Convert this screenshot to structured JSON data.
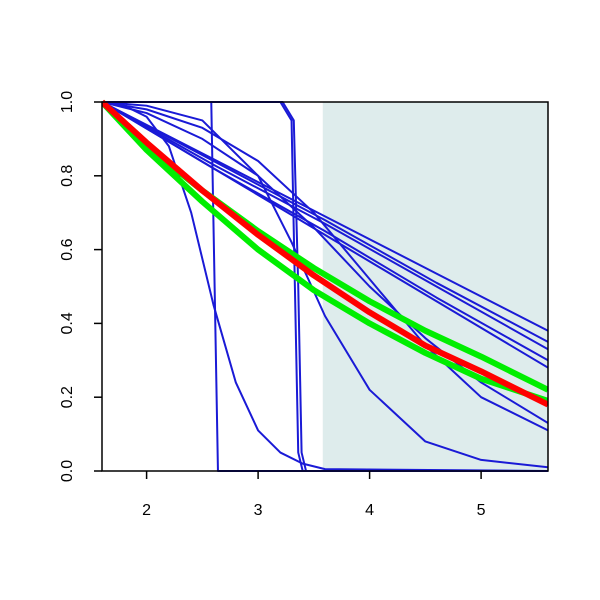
{
  "chart_data": {
    "type": "line",
    "xlim": [
      1.6,
      5.6
    ],
    "ylim": [
      0,
      1
    ],
    "xticks": [
      2,
      3,
      4,
      5
    ],
    "yticks": [
      {
        "value": 0,
        "label": "0.0"
      },
      {
        "value": 0.2,
        "label": "0.2"
      },
      {
        "value": 0.4,
        "label": "0.4"
      },
      {
        "value": 0.6,
        "label": "0.6"
      },
      {
        "value": 0.8,
        "label": "0.8"
      },
      {
        "value": 1,
        "label": "1.0"
      }
    ],
    "shaded_region": {
      "x": [
        3.58,
        5.6
      ],
      "color": "#deecec"
    },
    "series": [
      {
        "color": "#1a1ad6",
        "width": 2,
        "x": [
          1.6,
          2.6,
          3.6,
          4.6,
          5.6
        ],
        "values": [
          1,
          0.845,
          0.69,
          0.535,
          0.38
        ]
      },
      {
        "color": "#1a1ad6",
        "width": 2,
        "x": [
          1.6,
          2.6,
          3.6,
          4.6,
          5.6
        ],
        "values": [
          1,
          0.84,
          0.68,
          0.51,
          0.35
        ]
      },
      {
        "color": "#1a1ad6",
        "width": 2,
        "x": [
          1.6,
          2.6,
          3.6,
          4.6,
          5.6
        ],
        "values": [
          1,
          0.83,
          0.67,
          0.5,
          0.33
        ]
      },
      {
        "color": "#1a1ad6",
        "width": 2,
        "x": [
          1.6,
          2.6,
          3.6,
          4.6,
          5.6
        ],
        "values": [
          1,
          0.82,
          0.65,
          0.47,
          0.3
        ]
      },
      {
        "color": "#1a1ad6",
        "width": 2,
        "x": [
          1.6,
          2.6,
          3.6,
          4.6,
          5.6
        ],
        "values": [
          1,
          0.82,
          0.64,
          0.46,
          0.28
        ]
      },
      {
        "color": "#1a1ad6",
        "width": 2,
        "x": [
          1.6,
          2.58,
          2.61,
          2.64,
          5.6
        ],
        "values": [
          1,
          1,
          0.5,
          0,
          0
        ]
      },
      {
        "color": "#1a1ad6",
        "width": 2,
        "x": [
          1.6,
          3.2,
          3.3,
          3.33,
          3.36,
          3.4,
          5.6
        ],
        "values": [
          1,
          1,
          0.95,
          0.5,
          0.05,
          0,
          0
        ]
      },
      {
        "color": "#1a1ad6",
        "width": 2,
        "x": [
          1.6,
          3.22,
          3.32,
          3.36,
          3.39,
          3.43,
          5.6
        ],
        "values": [
          1,
          1,
          0.95,
          0.5,
          0.05,
          0,
          0
        ]
      },
      {
        "color": "#1a1ad6",
        "width": 2,
        "x": [
          1.6,
          1.8,
          2.0,
          2.2,
          2.4,
          2.6,
          2.8,
          3.0,
          3.2,
          3.4,
          3.6,
          5.6
        ],
        "values": [
          1,
          0.99,
          0.96,
          0.88,
          0.7,
          0.45,
          0.24,
          0.11,
          0.05,
          0.02,
          0.005,
          0
        ]
      },
      {
        "color": "#1a1ad6",
        "width": 2,
        "x": [
          1.6,
          2.0,
          2.5,
          3.0,
          3.3,
          3.6,
          4.0,
          4.5,
          5.0,
          5.6
        ],
        "values": [
          1,
          0.99,
          0.95,
          0.8,
          0.62,
          0.42,
          0.22,
          0.08,
          0.03,
          0.01
        ]
      },
      {
        "color": "#1a1ad6",
        "width": 2,
        "x": [
          1.6,
          2.0,
          2.5,
          3.0,
          3.5,
          4.0,
          4.5,
          5.0,
          5.6
        ],
        "values": [
          1,
          0.98,
          0.93,
          0.84,
          0.7,
          0.52,
          0.34,
          0.2,
          0.11
        ]
      },
      {
        "color": "#1a1ad6",
        "width": 2,
        "x": [
          1.6,
          2.0,
          2.5,
          3.0,
          3.5,
          4.0,
          4.5,
          5.0,
          5.6
        ],
        "values": [
          1,
          0.97,
          0.9,
          0.8,
          0.66,
          0.5,
          0.36,
          0.24,
          0.13
        ]
      },
      {
        "color": "#00ee00",
        "width": 6,
        "x": [
          1.6,
          2.0,
          2.5,
          3.0,
          3.5,
          4.0,
          4.5,
          5.0,
          5.6
        ],
        "values": [
          1,
          0.88,
          0.76,
          0.65,
          0.55,
          0.46,
          0.38,
          0.31,
          0.22
        ]
      },
      {
        "color": "#00ee00",
        "width": 6,
        "x": [
          1.6,
          2.0,
          2.5,
          3.0,
          3.5,
          4.0,
          4.5,
          5.0,
          5.6
        ],
        "values": [
          1,
          0.87,
          0.73,
          0.6,
          0.49,
          0.4,
          0.32,
          0.25,
          0.19
        ]
      },
      {
        "color": "#ff0000",
        "width": 6,
        "x": [
          1.6,
          2.0,
          2.5,
          3.0,
          3.5,
          4.0,
          4.5,
          5.0,
          5.6
        ],
        "values": [
          1,
          0.89,
          0.76,
          0.64,
          0.53,
          0.43,
          0.34,
          0.27,
          0.18
        ]
      }
    ]
  }
}
